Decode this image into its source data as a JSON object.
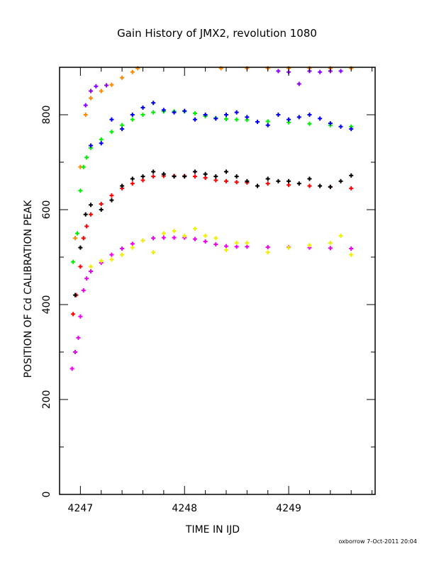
{
  "chart_data": {
    "type": "scatter",
    "title": "Gain History of JMX2, revolution 1080",
    "xlabel": "TIME IN IJD",
    "ylabel": "POSITION OF Cd CALIBRATION PEAK",
    "xlim": [
      4246.8,
      4249.83
    ],
    "ylim": [
      0,
      900
    ],
    "xticks": [
      "4247",
      "4248",
      "4249"
    ],
    "yticks": [
      "0",
      "200",
      "400",
      "600",
      "800"
    ],
    "grid": false,
    "series": [
      {
        "color": "#ff8800",
        "x": [
          4246.95,
          4247.0,
          4247.05,
          4247.1,
          4247.2,
          4247.3,
          4247.4,
          4247.5,
          4247.55,
          4248.35,
          4248.6,
          4248.8,
          4249.0,
          4249.2,
          4249.4,
          4249.6
        ],
        "y": [
          540,
          690,
          800,
          835,
          850,
          863,
          878,
          890,
          898,
          898,
          898,
          898,
          898,
          898,
          898,
          898
        ]
      },
      {
        "color": "#8800ff",
        "x": [
          4247.05,
          4247.1,
          4247.15,
          4247.25,
          4248.9,
          4249.0,
          4249.1,
          4249.2,
          4249.3,
          4249.4,
          4249.5
        ],
        "y": [
          820,
          850,
          860,
          862,
          892,
          890,
          865,
          892,
          890,
          892,
          892
        ]
      },
      {
        "color": "#00ee00",
        "x": [
          4246.93,
          4246.97,
          4247.0,
          4247.03,
          4247.06,
          4247.1,
          4247.2,
          4247.3,
          4247.4,
          4247.5,
          4247.6,
          4247.7,
          4247.8,
          4247.9,
          4248.0,
          4248.1,
          4248.2,
          4248.3,
          4248.4,
          4248.5,
          4248.6,
          4248.8,
          4249.0,
          4249.2,
          4249.4,
          4249.6
        ],
        "y": [
          490,
          550,
          640,
          690,
          710,
          730,
          748,
          764,
          778,
          790,
          800,
          805,
          807,
          807,
          807,
          803,
          797,
          793,
          791,
          790,
          789,
          786,
          784,
          781,
          778,
          775
        ]
      },
      {
        "color": "#0000ee",
        "x": [
          4247.1,
          4247.2,
          4247.3,
          4247.4,
          4247.5,
          4247.6,
          4247.7,
          4247.8,
          4247.9,
          4248.0,
          4248.1,
          4248.2,
          4248.3,
          4248.4,
          4248.5,
          4248.6,
          4248.7,
          4248.8,
          4248.9,
          4249.0,
          4249.1,
          4249.2,
          4249.3,
          4249.4,
          4249.5,
          4249.6
        ],
        "y": [
          735,
          740,
          790,
          770,
          800,
          815,
          825,
          810,
          805,
          808,
          790,
          800,
          792,
          800,
          805,
          795,
          785,
          778,
          800,
          790,
          795,
          800,
          792,
          782,
          775,
          770
        ]
      },
      {
        "color": "#ff0000",
        "x": [
          4246.93,
          4246.96,
          4247.0,
          4247.03,
          4247.06,
          4247.1,
          4247.2,
          4247.3,
          4247.4,
          4247.5,
          4247.6,
          4247.7,
          4247.8,
          4247.9,
          4248.0,
          4248.1,
          4248.2,
          4248.3,
          4248.4,
          4248.5,
          4248.6,
          4248.8,
          4249.0,
          4249.2,
          4249.4,
          4249.6
        ],
        "y": [
          380,
          420,
          480,
          540,
          565,
          590,
          612,
          630,
          645,
          655,
          662,
          670,
          671,
          671,
          671,
          670,
          667,
          662,
          660,
          658,
          657,
          655,
          652,
          650,
          648,
          645
        ]
      },
      {
        "color": "#000000",
        "x": [
          4246.95,
          4247.0,
          4247.05,
          4247.1,
          4247.2,
          4247.3,
          4247.4,
          4247.5,
          4247.6,
          4247.7,
          4247.8,
          4247.9,
          4248.0,
          4248.1,
          4248.2,
          4248.3,
          4248.4,
          4248.5,
          4248.6,
          4248.7,
          4248.8,
          4248.9,
          4249.0,
          4249.1,
          4249.2,
          4249.3,
          4249.4,
          4249.5,
          4249.6
        ],
        "y": [
          420,
          520,
          590,
          610,
          600,
          620,
          650,
          665,
          670,
          680,
          675,
          670,
          670,
          680,
          675,
          670,
          680,
          670,
          660,
          650,
          665,
          660,
          660,
          655,
          665,
          650,
          648,
          660,
          672
        ]
      },
      {
        "color": "#ee00ee",
        "x": [
          4246.92,
          4246.95,
          4246.98,
          4247.0,
          4247.03,
          4247.06,
          4247.1,
          4247.2,
          4247.3,
          4247.4,
          4247.5,
          4247.6,
          4247.7,
          4247.8,
          4247.9,
          4248.0,
          4248.1,
          4248.2,
          4248.3,
          4248.4,
          4248.5,
          4248.6,
          4248.8,
          4249.0,
          4249.2,
          4249.4,
          4249.6
        ],
        "y": [
          265,
          300,
          330,
          375,
          430,
          455,
          470,
          488,
          505,
          518,
          528,
          535,
          540,
          541,
          541,
          541,
          538,
          533,
          527,
          523,
          522,
          522,
          521,
          521,
          520,
          519,
          518
        ]
      },
      {
        "color": "#eeee00",
        "x": [
          4247.1,
          4247.2,
          4247.3,
          4247.4,
          4247.5,
          4247.6,
          4247.7,
          4247.8,
          4247.9,
          4248.0,
          4248.1,
          4248.2,
          4248.3,
          4248.4,
          4248.5,
          4248.6,
          4248.8,
          4249.0,
          4249.2,
          4249.4,
          4249.5,
          4249.6
        ],
        "y": [
          480,
          492,
          495,
          505,
          520,
          535,
          510,
          550,
          555,
          545,
          560,
          545,
          540,
          515,
          530,
          530,
          510,
          520,
          525,
          530,
          545,
          505
        ]
      }
    ]
  },
  "footer": "oxborrow  7-Oct-2011 20:04"
}
